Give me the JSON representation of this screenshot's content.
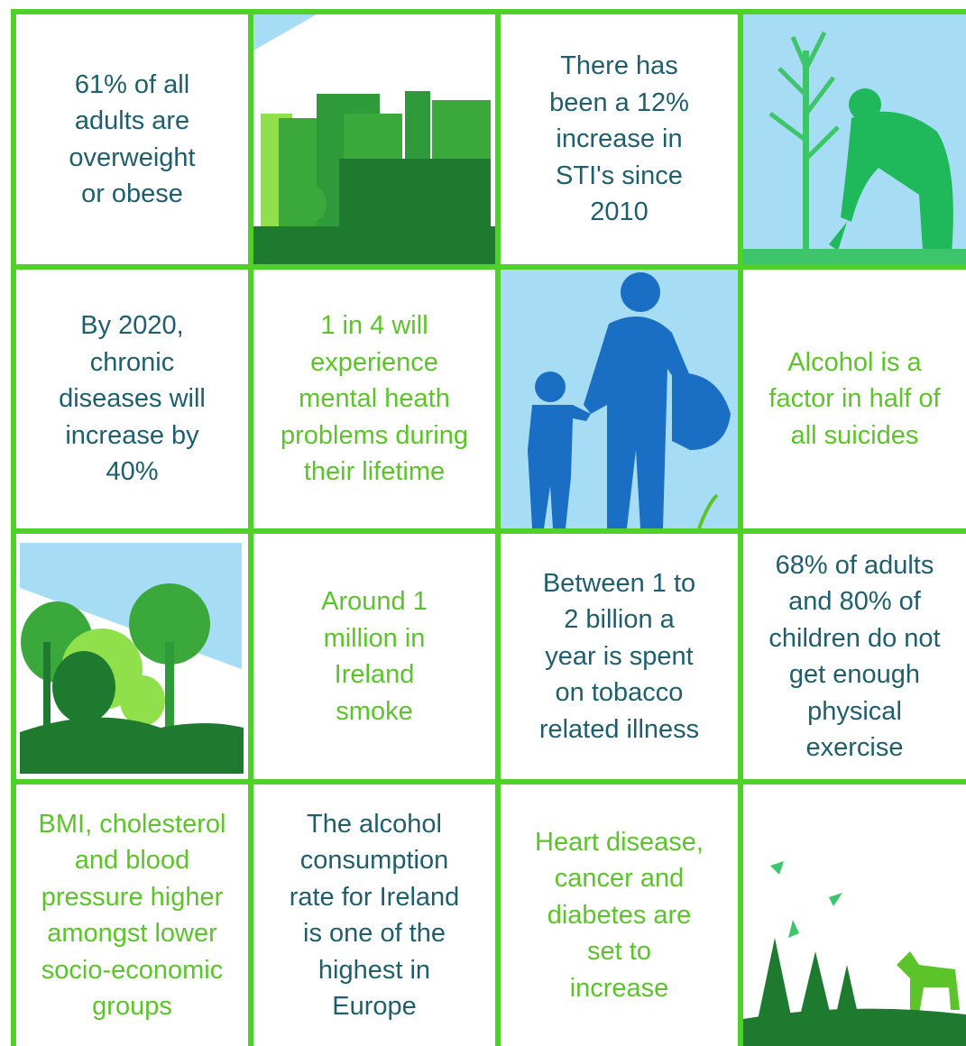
{
  "cells": [
    {
      "lines": [
        "61% of all",
        "adults are",
        "overweight",
        "or obese"
      ]
    },
    {
      "lines": [
        "There has",
        "been a 12%",
        "increase in",
        "STI's since",
        "2010"
      ]
    },
    {
      "lines": [
        "By 2020,",
        "chronic",
        "diseases will",
        "increase by",
        "40%"
      ]
    },
    {
      "lines": [
        "1 in 4 will",
        "experience",
        "mental heath",
        "problems during",
        "their lifetime"
      ]
    },
    {
      "lines": [
        "Alcohol is a",
        "factor in half of",
        "all suicides"
      ]
    },
    {
      "lines": [
        "Around 1",
        "million in",
        "Ireland",
        "smoke"
      ]
    },
    {
      "lines": [
        "Between 1 to",
        "2 billion a",
        "year is spent",
        "on tobacco",
        "related illness"
      ]
    },
    {
      "lines": [
        "68% of adults",
        "and 80% of",
        "children do not",
        "get enough",
        "physical",
        "exercise"
      ]
    },
    {
      "lines": [
        "BMI, cholesterol",
        "and blood",
        "pressure higher",
        "amongst lower",
        "socio-economic",
        "groups"
      ]
    },
    {
      "lines": [
        "The alcohol",
        "consumption",
        "rate for Ireland",
        "is one of the",
        "highest in",
        "Europe"
      ]
    },
    {
      "lines": [
        "Heart disease,",
        "cancer and",
        "diabetes are",
        "set to",
        "increase"
      ]
    }
  ]
}
